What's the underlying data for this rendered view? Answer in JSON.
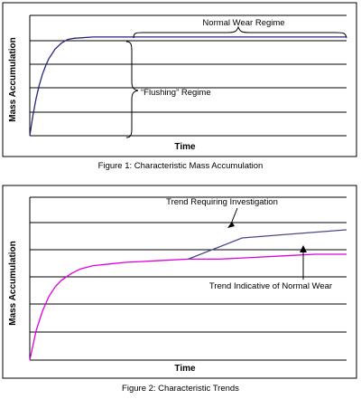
{
  "chart_data": [
    {
      "type": "line",
      "caption": "Figure 1:  Characteristic Mass Accumulation",
      "xlabel": "Time",
      "ylabel": "Mass Accumulation",
      "grid": "horizontal",
      "series": [
        {
          "color": "#26267a",
          "x": [
            0,
            1,
            2,
            3,
            4,
            5,
            6,
            8,
            10,
            12,
            14,
            20,
            26,
            30,
            40,
            50,
            60,
            70,
            80,
            90,
            100
          ],
          "y": [
            0,
            17,
            31,
            42,
            51,
            58,
            64,
            72,
            77,
            80,
            81,
            82,
            82,
            82,
            82,
            82,
            82,
            82,
            82,
            82,
            82
          ]
        }
      ],
      "annotations": [
        {
          "text": "Normal Wear Regime",
          "kind": "brace-top"
        },
        {
          "text": "“Flushing” Regime",
          "kind": "brace-side"
        }
      ]
    },
    {
      "type": "line",
      "caption": "Figure 2:  Characteristic Trends",
      "xlabel": "Time",
      "ylabel": "Mass Accumulation",
      "grid": "horizontal",
      "series": [
        {
          "color": "#dd00dd",
          "x": [
            0,
            2,
            4,
            6,
            8,
            10,
            13,
            16,
            20,
            25,
            30,
            35,
            40,
            50,
            60,
            70,
            80,
            90,
            100
          ],
          "y": [
            0,
            18,
            30,
            39,
            45,
            49,
            53,
            56,
            58,
            59,
            60,
            60.5,
            61,
            62,
            62,
            63,
            64,
            65,
            65
          ]
        },
        {
          "color": "#4a4a8a",
          "x": [
            50,
            67,
            80,
            100
          ],
          "y": [
            62,
            75,
            77,
            80
          ]
        }
      ],
      "annotations": [
        {
          "text": "Trend Requiring Investigation",
          "kind": "arrow-down"
        },
        {
          "text": "Trend Indicative of Normal Wear",
          "kind": "arrow-up"
        }
      ]
    }
  ]
}
